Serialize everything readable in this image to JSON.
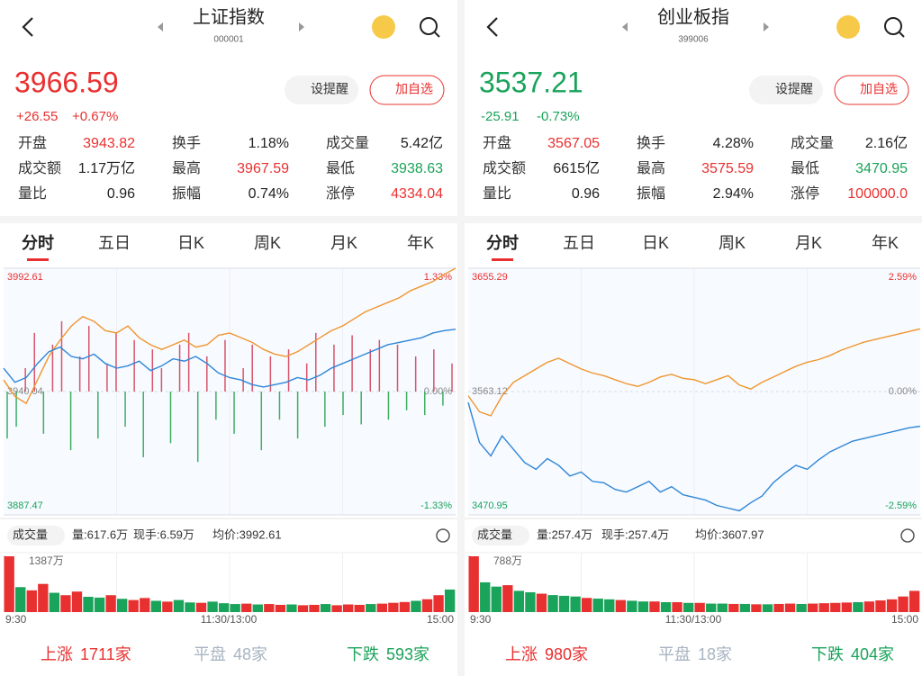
{
  "panels": [
    {
      "title": "上证指数",
      "code": "000001",
      "price": "3966.59",
      "change": "+26.55",
      "change_pct": "+0.67%",
      "color": "#e93030",
      "alert_btn": "设提醒",
      "fav_btn": "加自选",
      "stats": [
        [
          {
            "label": "开盘",
            "value": "3943.82",
            "color": "#e93030"
          },
          {
            "label": "换手",
            "value": "1.18%",
            "color": "#222222"
          },
          {
            "label": "成交量",
            "value": "5.42亿",
            "color": "#222222"
          }
        ],
        [
          {
            "label": "成交额",
            "value": "1.17万亿",
            "color": "#222222"
          },
          {
            "label": "最高",
            "value": "3967.59",
            "color": "#e93030"
          },
          {
            "label": "最低",
            "value": "3938.63",
            "color": "#1aa35a"
          }
        ],
        [
          {
            "label": "量比",
            "value": "0.96",
            "color": "#222222"
          },
          {
            "label": "振幅",
            "value": "0.74%",
            "color": "#222222"
          },
          {
            "label": "涨停",
            "value": "4334.04",
            "color": "#e93030"
          }
        ]
      ],
      "tabs": [
        "分时",
        "五日",
        "日K",
        "周K",
        "月K",
        "年K"
      ],
      "chart": {
        "type": "line",
        "ylim": [
          3887.47,
          3992.61
        ],
        "yticks": [
          3887.47,
          3940.04,
          3992.61
        ],
        "y2lim": [
          -1.33,
          1.33
        ],
        "y2ticks": [
          {
            "value": -1.33,
            "label": "-1.33%"
          },
          {
            "value": 0,
            "label": "0.00%"
          },
          {
            "value": 1.33,
            "label": "1.33%"
          }
        ],
        "series": [
          {
            "color": "#f0962e",
            "values": [
              3945,
              3938,
              3935,
              3945,
              3955,
              3962,
              3968,
              3972,
              3970,
              3966,
              3965,
              3968,
              3963,
              3960,
              3958,
              3960,
              3962,
              3959,
              3960,
              3964,
              3965,
              3963,
              3961,
              3958,
              3956,
              3955,
              3957,
              3960,
              3963,
              3966,
              3968,
              3971,
              3974,
              3976,
              3978,
              3980,
              3983,
              3985,
              3987,
              3990,
              3992.61
            ]
          },
          {
            "color": "#2f86d6",
            "values": [
              3950,
              3944,
              3946,
              3952,
              3957,
              3959,
              3955,
              3954,
              3956,
              3952,
              3950,
              3951,
              3953,
              3949,
              3951,
              3954,
              3953,
              3955,
              3952,
              3948,
              3946,
              3945,
              3943,
              3942,
              3943,
              3944,
              3946,
              3945,
              3947,
              3950,
              3952,
              3954,
              3956,
              3958,
              3960,
              3961,
              3962,
              3963,
              3965,
              3966,
              3966.59
            ]
          }
        ],
        "bars": {
          "up_color": "#d9546a",
          "down_color": "#3fae63",
          "values": [
            -20,
            -15,
            10,
            25,
            -18,
            20,
            30,
            -25,
            15,
            28,
            -20,
            12,
            25,
            -15,
            22,
            -28,
            18,
            10,
            -22,
            20,
            25,
            -30,
            15,
            -12,
            22,
            -18,
            10,
            20,
            -25,
            15,
            -12,
            18,
            -20,
            12,
            25,
            -15,
            20,
            -10,
            24,
            -14,
            18,
            22,
            -12,
            20,
            -8,
            15,
            -10,
            18,
            -6,
            12
          ]
        }
      },
      "volume": {
        "label": "成交量",
        "stats": [
          "量:617.6万",
          "现手:6.59万",
          "均价:3992.61"
        ],
        "ymax": {
          "value": 1387,
          "label": "1387万"
        },
        "values": [
          1387,
          620,
          540,
          700,
          480,
          420,
          510,
          380,
          360,
          420,
          330,
          300,
          350,
          280,
          260,
          300,
          240,
          230,
          260,
          220,
          200,
          210,
          190,
          200,
          180,
          190,
          170,
          180,
          200,
          170,
          190,
          180,
          200,
          210,
          230,
          250,
          280,
          320,
          420,
          560
        ],
        "colors": [
          "#e93030",
          "#1aa35a",
          "#e93030",
          "#e93030",
          "#1aa35a",
          "#e93030",
          "#e93030",
          "#1aa35a",
          "#1aa35a",
          "#e93030",
          "#1aa35a",
          "#e93030",
          "#e93030",
          "#1aa35a",
          "#e93030",
          "#1aa35a",
          "#1aa35a",
          "#e93030",
          "#1aa35a",
          "#1aa35a",
          "#1aa35a",
          "#e93030",
          "#1aa35a",
          "#e93030",
          "#e93030",
          "#1aa35a",
          "#e93030",
          "#e93030",
          "#1aa35a",
          "#e93030",
          "#e93030",
          "#e93030",
          "#1aa35a",
          "#e93030",
          "#e93030",
          "#e93030",
          "#1aa35a",
          "#e93030",
          "#e93030",
          "#1aa35a"
        ]
      },
      "xticks": [
        "9:30",
        "11:30/13:00",
        "15:00"
      ],
      "footer": [
        {
          "label": "上涨",
          "value": "1711家",
          "color": "#e93030"
        },
        {
          "label": "平盘",
          "value": "48家",
          "color": "#a8b4c2"
        },
        {
          "label": "下跌",
          "value": "593家",
          "color": "#1aa35a"
        }
      ]
    },
    {
      "title": "创业板指",
      "code": "399006",
      "price": "3537.21",
      "change": "-25.91",
      "change_pct": "-0.73%",
      "color": "#1aa35a",
      "alert_btn": "设提醒",
      "fav_btn": "加自选",
      "stats": [
        [
          {
            "label": "开盘",
            "value": "3567.05",
            "color": "#e93030"
          },
          {
            "label": "换手",
            "value": "4.28%",
            "color": "#222222"
          },
          {
            "label": "成交量",
            "value": "2.16亿",
            "color": "#222222"
          }
        ],
        [
          {
            "label": "成交额",
            "value": "6615亿",
            "color": "#222222"
          },
          {
            "label": "最高",
            "value": "3575.59",
            "color": "#e93030"
          },
          {
            "label": "最低",
            "value": "3470.95",
            "color": "#1aa35a"
          }
        ],
        [
          {
            "label": "量比",
            "value": "0.96",
            "color": "#222222"
          },
          {
            "label": "振幅",
            "value": "2.94%",
            "color": "#222222"
          },
          {
            "label": "涨停",
            "value": "100000.0",
            "color": "#e93030"
          }
        ]
      ],
      "tabs": [
        "分时",
        "五日",
        "日K",
        "周K",
        "月K",
        "年K"
      ],
      "chart": {
        "type": "line",
        "ylim": [
          3470.95,
          3655.29
        ],
        "yticks": [
          3470.95,
          3563.12,
          3655.29
        ],
        "y2lim": [
          -2.59,
          2.59
        ],
        "y2ticks": [
          {
            "value": -2.59,
            "label": "-2.59%"
          },
          {
            "value": 0,
            "label": "0.00%"
          },
          {
            "value": 2.59,
            "label": "2.59%"
          }
        ],
        "series": [
          {
            "color": "#f0962e",
            "values": [
              3560,
              3548,
              3545,
              3560,
              3570,
              3575,
              3580,
              3585,
              3588,
              3584,
              3580,
              3577,
              3575,
              3572,
              3569,
              3567,
              3570,
              3574,
              3576,
              3573,
              3572,
              3569,
              3572,
              3575,
              3568,
              3565,
              3570,
              3574,
              3578,
              3582,
              3585,
              3587,
              3590,
              3594,
              3597,
              3600,
              3602,
              3604,
              3606,
              3608,
              3610
            ]
          },
          {
            "color": "#2f86d6",
            "values": [
              3555,
              3525,
              3515,
              3530,
              3520,
              3510,
              3505,
              3513,
              3508,
              3500,
              3503,
              3496,
              3495,
              3490,
              3488,
              3492,
              3496,
              3488,
              3492,
              3486,
              3484,
              3482,
              3478,
              3476,
              3474,
              3480,
              3485,
              3495,
              3502,
              3508,
              3505,
              3512,
              3518,
              3522,
              3526,
              3528,
              3530,
              3532,
              3534,
              3536,
              3537.21
            ]
          }
        ]
      },
      "volume": {
        "label": "成交量",
        "stats": [
          "量:257.4万",
          "现手:257.4万",
          "均价:3607.97"
        ],
        "ymax": {
          "value": 788,
          "label": "788万"
        },
        "values": [
          788,
          420,
          360,
          380,
          300,
          280,
          260,
          240,
          230,
          220,
          200,
          190,
          180,
          170,
          160,
          150,
          150,
          140,
          140,
          130,
          130,
          120,
          120,
          115,
          115,
          110,
          110,
          115,
          120,
          115,
          120,
          125,
          130,
          135,
          140,
          150,
          165,
          180,
          220,
          300
        ],
        "colors": [
          "#e93030",
          "#1aa35a",
          "#1aa35a",
          "#e93030",
          "#1aa35a",
          "#1aa35a",
          "#e93030",
          "#1aa35a",
          "#1aa35a",
          "#1aa35a",
          "#e93030",
          "#1aa35a",
          "#1aa35a",
          "#e93030",
          "#1aa35a",
          "#1aa35a",
          "#e93030",
          "#1aa35a",
          "#e93030",
          "#1aa35a",
          "#e93030",
          "#1aa35a",
          "#1aa35a",
          "#e93030",
          "#1aa35a",
          "#e93030",
          "#1aa35a",
          "#e93030",
          "#e93030",
          "#1aa35a",
          "#e93030",
          "#e93030",
          "#e93030",
          "#e93030",
          "#1aa35a",
          "#e93030",
          "#e93030",
          "#e93030",
          "#e93030",
          "#e93030"
        ]
      },
      "xticks": [
        "9:30",
        "11:30/13:00",
        "15:00"
      ],
      "footer": [
        {
          "label": "上涨",
          "value": "980家",
          "color": "#e93030"
        },
        {
          "label": "平盘",
          "value": "18家",
          "color": "#a8b4c2"
        },
        {
          "label": "下跌",
          "value": "404家",
          "color": "#1aa35a"
        }
      ]
    }
  ]
}
